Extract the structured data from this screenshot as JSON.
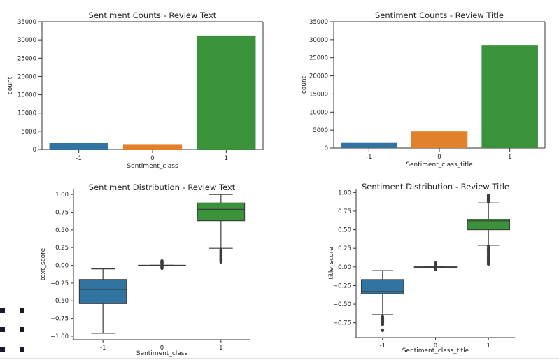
{
  "chart_data": [
    {
      "type": "bar",
      "title": "Sentiment Counts - Review Text",
      "xlabel": "Sentiment_class",
      "ylabel": "count",
      "categories": [
        "-1",
        "0",
        "1"
      ],
      "values": [
        1900,
        1450,
        31200
      ],
      "ylim": [
        0,
        35000
      ],
      "yticks": [
        0,
        5000,
        10000,
        15000,
        20000,
        25000,
        30000,
        35000
      ],
      "ytick_labels": [
        "0",
        "5000",
        "10000",
        "15000",
        "20000",
        "25000",
        "30000",
        "35000"
      ],
      "colors": [
        "#3274a1",
        "#e1812c",
        "#3a923a"
      ],
      "grid": false
    },
    {
      "type": "bar",
      "title": "Sentiment Counts - Review Title",
      "xlabel": "Sentiment_class_title",
      "ylabel": "count",
      "categories": [
        "-1",
        "0",
        "1"
      ],
      "values": [
        1600,
        4600,
        28400
      ],
      "ylim": [
        0,
        35000
      ],
      "yticks": [
        0,
        5000,
        10000,
        15000,
        20000,
        25000,
        30000,
        35000
      ],
      "ytick_labels": [
        "0",
        "5000",
        "10000",
        "15000",
        "20000",
        "25000",
        "30000",
        "35000"
      ],
      "colors": [
        "#3274a1",
        "#e1812c",
        "#3a923a"
      ],
      "grid": false
    },
    {
      "type": "box",
      "title": "Sentiment Distribution - Review Text",
      "xlabel": "Sentiment_class",
      "ylabel": "text_score",
      "categories": [
        "-1",
        "0",
        "1"
      ],
      "boxes": [
        {
          "whisker_low": -0.96,
          "q1": -0.54,
          "median": -0.34,
          "q3": -0.2,
          "whisker_high": -0.05,
          "outliers": []
        },
        {
          "whisker_low": 0.0,
          "q1": 0.0,
          "median": 0.0,
          "q3": 0.0,
          "whisker_high": 0.0,
          "outliers": [
            0.06,
            0.05,
            0.04,
            0.03,
            0.02,
            -0.02,
            -0.03,
            -0.04
          ]
        },
        {
          "whisker_low": 0.24,
          "q1": 0.63,
          "median": 0.79,
          "q3": 0.88,
          "whisker_high": 1.0,
          "outliers": [
            0.22,
            0.2,
            0.18,
            0.16,
            0.14,
            0.12,
            0.1,
            0.08,
            0.06,
            0.05
          ]
        }
      ],
      "ylim": [
        -1.05,
        1.08
      ],
      "yticks": [
        -1.0,
        -0.75,
        -0.5,
        -0.25,
        0.0,
        0.25,
        0.5,
        0.75,
        1.0
      ],
      "ytick_labels": [
        "−1.00",
        "−0.75",
        "−0.50",
        "−0.25",
        "0.00",
        "0.25",
        "0.50",
        "0.75",
        "1.00"
      ],
      "colors": [
        "#3274a1",
        "#e1812c",
        "#3a923a"
      ],
      "grid": false
    },
    {
      "type": "box",
      "title": "Sentiment Distribution - Review Title",
      "xlabel": "Sentiment_class_title",
      "ylabel": "title_score",
      "categories": [
        "-1",
        "0",
        "1"
      ],
      "boxes": [
        {
          "whisker_low": -0.64,
          "q1": -0.36,
          "median": -0.33,
          "q3": -0.17,
          "whisker_high": -0.05,
          "outliers": [
            -0.67,
            -0.69,
            -0.71,
            -0.73,
            -0.75,
            -0.77,
            -0.85
          ]
        },
        {
          "whisker_low": 0.0,
          "q1": 0.0,
          "median": 0.0,
          "q3": 0.0,
          "whisker_high": 0.0,
          "outliers": [
            0.05,
            0.04,
            0.03,
            0.02,
            -0.02,
            -0.03
          ]
        },
        {
          "whisker_low": 0.29,
          "q1": 0.5,
          "median": 0.62,
          "q3": 0.64,
          "whisker_high": 0.86,
          "outliers": [
            0.27,
            0.24,
            0.21,
            0.18,
            0.15,
            0.12,
            0.09,
            0.06,
            0.04,
            0.88,
            0.9,
            0.92,
            0.94,
            0.96
          ]
        }
      ],
      "ylim": [
        -0.95,
        1.05
      ],
      "yticks": [
        -0.75,
        -0.5,
        -0.25,
        0.0,
        0.25,
        0.5,
        0.75,
        1.0
      ],
      "ytick_labels": [
        "−0.75",
        "−0.50",
        "−0.25",
        "0.00",
        "0.25",
        "0.50",
        "0.75",
        "1.00"
      ],
      "colors": [
        "#3274a1",
        "#e1812c",
        "#3a923a"
      ],
      "grid": false
    }
  ],
  "ui": {
    "dot_color": "#1a1a2e"
  }
}
